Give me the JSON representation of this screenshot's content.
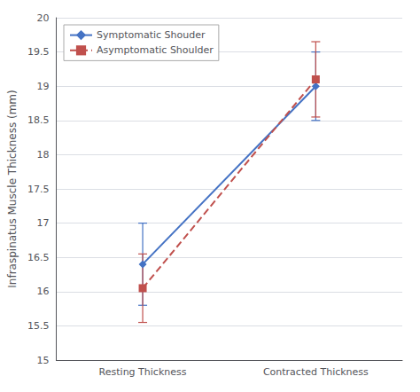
{
  "chart_data": {
    "type": "line",
    "categories": [
      "Resting Thickness",
      "Contracted Thickness"
    ],
    "ylabel": "Infraspinatus Muscle Thickness (mm)",
    "series": [
      {
        "name": "Symptomatic Shouder",
        "color": "#4472C4",
        "values": [
          16.4,
          19.0
        ],
        "yerr_lower": [
          0.6,
          0.5
        ],
        "yerr_upper": [
          0.6,
          0.5
        ],
        "marker": "diamond",
        "line_style": "solid"
      },
      {
        "name": "Asymptomatic Shoulder",
        "color": "#C0504D",
        "values": [
          16.05,
          19.1
        ],
        "yerr_lower": [
          0.5,
          0.55
        ],
        "yerr_upper": [
          0.5,
          0.55
        ],
        "marker": "square",
        "line_style": "dashed"
      }
    ],
    "ylim": [
      15.0,
      20.0
    ],
    "yticks": [
      15.0,
      15.5,
      16.0,
      16.5,
      17.0,
      17.5,
      18.0,
      18.5,
      19.0,
      19.5,
      20.0
    ],
    "grid": true,
    "legend": "upper left"
  }
}
